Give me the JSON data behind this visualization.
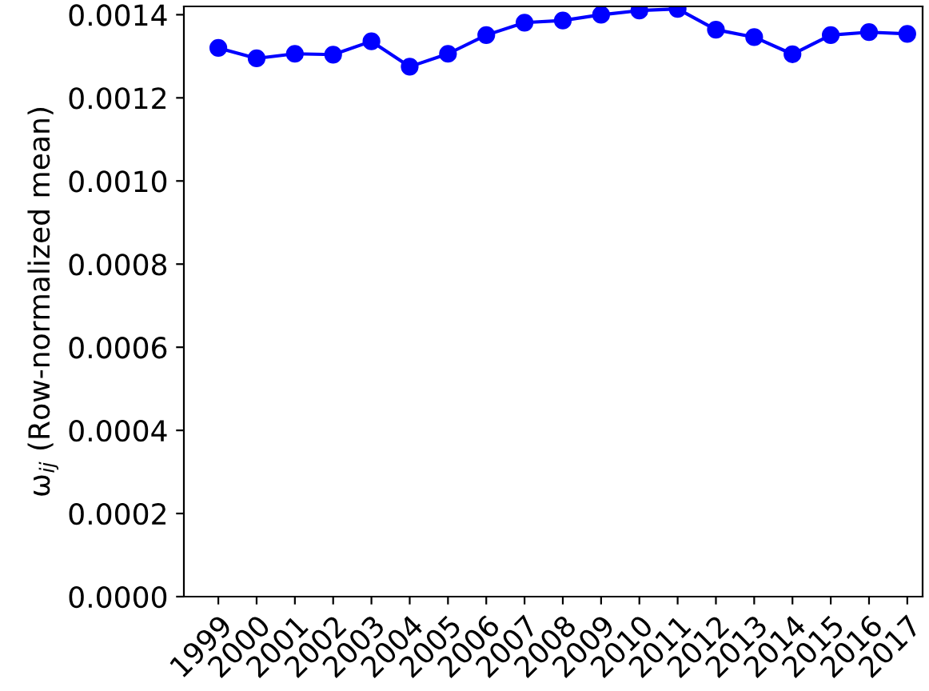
{
  "chart_data": {
    "type": "line",
    "ylabel": "ω$_{ij}$ (Row-normalized mean)",
    "categories": [
      "1999",
      "2000",
      "2001",
      "2002",
      "2003",
      "2004",
      "2005",
      "2006",
      "2007",
      "2008",
      "2009",
      "2010",
      "2011",
      "2012",
      "2013",
      "2014",
      "2015",
      "2016",
      "2017"
    ],
    "series": [
      {
        "color": "#0000ff",
        "values": [
          0.00132,
          0.001295,
          0.001306,
          0.001304,
          0.001336,
          0.001275,
          0.001306,
          0.001351,
          0.001381,
          0.001386,
          0.0014,
          0.00141,
          0.001414,
          0.001364,
          0.001346,
          0.001305,
          0.001351,
          0.001358,
          0.001354
        ]
      }
    ],
    "ylim": [
      0,
      0.00142
    ],
    "yticks": [
      {
        "value": 0,
        "label": "0.0000"
      },
      {
        "value": 0.0002,
        "label": "0.0002"
      },
      {
        "value": 0.0004,
        "label": "0.0004"
      },
      {
        "value": 0.0006,
        "label": "0.0006"
      },
      {
        "value": 0.0008,
        "label": "0.0008"
      },
      {
        "value": 0.001,
        "label": "0.0010"
      },
      {
        "value": 0.0012,
        "label": "0.0012"
      },
      {
        "value": 0.0014,
        "label": "0.0014"
      }
    ],
    "marker": "circle",
    "line_style": "solid",
    "grid": false,
    "legend": false
  }
}
